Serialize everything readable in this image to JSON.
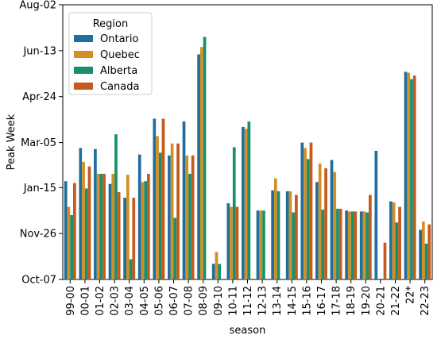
{
  "chart_data": {
    "type": "bar",
    "xlabel": "season",
    "ylabel": "Peak Week",
    "y_ticks": [
      {
        "label": "Oct-07",
        "value": 0
      },
      {
        "label": "Nov-26",
        "value": 50
      },
      {
        "label": "Jan-15",
        "value": 100
      },
      {
        "label": "Mar-05",
        "value": 149
      },
      {
        "label": "Apr-24",
        "value": 199
      },
      {
        "label": "Jun-13",
        "value": 249
      },
      {
        "label": "Aug-02",
        "value": 299
      }
    ],
    "ylim": [
      0,
      299
    ],
    "grid": false,
    "legend": {
      "title": "Region",
      "position": "top-left"
    },
    "categories": [
      "99-00",
      "00-01",
      "01-02",
      "02-03",
      "03-04",
      "04-05",
      "05-06",
      "06-07",
      "07-08",
      "08-09",
      "09-10",
      "10-11",
      "11-12",
      "12-13",
      "13-14",
      "14-15",
      "15-16",
      "16-17",
      "17-18",
      "18-19",
      "19-20",
      "20-21",
      "21-22",
      "22*",
      "22-23"
    ],
    "series": [
      {
        "name": "Ontario",
        "color": "#1f6e9c",
        "values": [
          107,
          143,
          142,
          104,
          89,
          136,
          175,
          135,
          172,
          245,
          17,
          83,
          166,
          75,
          97,
          96,
          149,
          106,
          130,
          75,
          74,
          140,
          85,
          226,
          54
        ]
      },
      {
        "name": "Quebec",
        "color": "#d18f25",
        "values": [
          79,
          128,
          115,
          115,
          114,
          106,
          156,
          148,
          135,
          253,
          30,
          79,
          164,
          75,
          110,
          96,
          143,
          126,
          117,
          74,
          74,
          null,
          84,
          225,
          63
        ]
      },
      {
        "name": "Alberta",
        "color": "#1a8f6e",
        "values": [
          70,
          99,
          115,
          158,
          22,
          107,
          138,
          67,
          115,
          264,
          17,
          144,
          172,
          75,
          96,
          73,
          131,
          76,
          77,
          74,
          73,
          null,
          62,
          218,
          39
        ]
      },
      {
        "name": "Canada",
        "color": "#c55a1e",
        "values": [
          105,
          123,
          115,
          95,
          89,
          115,
          175,
          148,
          135,
          null,
          null,
          79,
          null,
          null,
          null,
          92,
          149,
          121,
          77,
          74,
          92,
          40,
          79,
          222,
          60
        ]
      }
    ]
  }
}
